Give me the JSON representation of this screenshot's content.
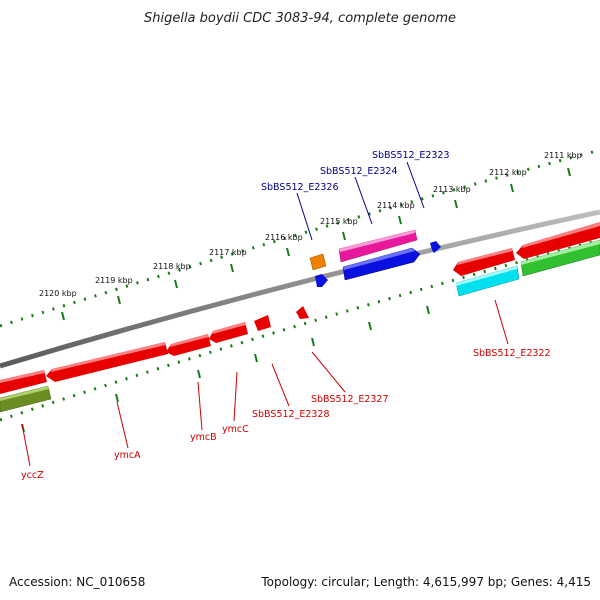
{
  "title": "Shigella boydii CDC 3083-94, complete genome",
  "footer": {
    "accession": "Accession: NC_010658",
    "summary": "Topology: circular; Length: 4,615,997 bp; Genes: 4,415"
  },
  "colors": {
    "backbone": "#8a8a8a",
    "tick": "#1a7a1a",
    "label_forward": "#00008b",
    "label_reverse": "#cc0000",
    "gene_red": "#e80000",
    "gene_magenta": "#e8189c",
    "gene_blue": "#0a10e0",
    "gene_orange": "#f08000",
    "gene_cyan": "#00e0ee",
    "gene_green": "#30c030",
    "gene_olive": "#6b8e23"
  },
  "ruler_labels": [
    "2111 kbp",
    "2112 kbp",
    "2113 kbp",
    "2114 kbp",
    "2115 kbp",
    "2116 kbp",
    "2117 kbp",
    "2118 kbp",
    "2119 kbp",
    "2120 kbp"
  ],
  "gene_labels_forward": [
    "SbBS512_E2323",
    "SbBS512_E2324",
    "SbBS512_E2326"
  ],
  "gene_labels_reverse": [
    "SbBS512_E2322",
    "SbBS512_E2327",
    "SbBS512_E2328",
    "ymcC",
    "ymcB",
    "ymcA",
    "yccZ"
  ]
}
